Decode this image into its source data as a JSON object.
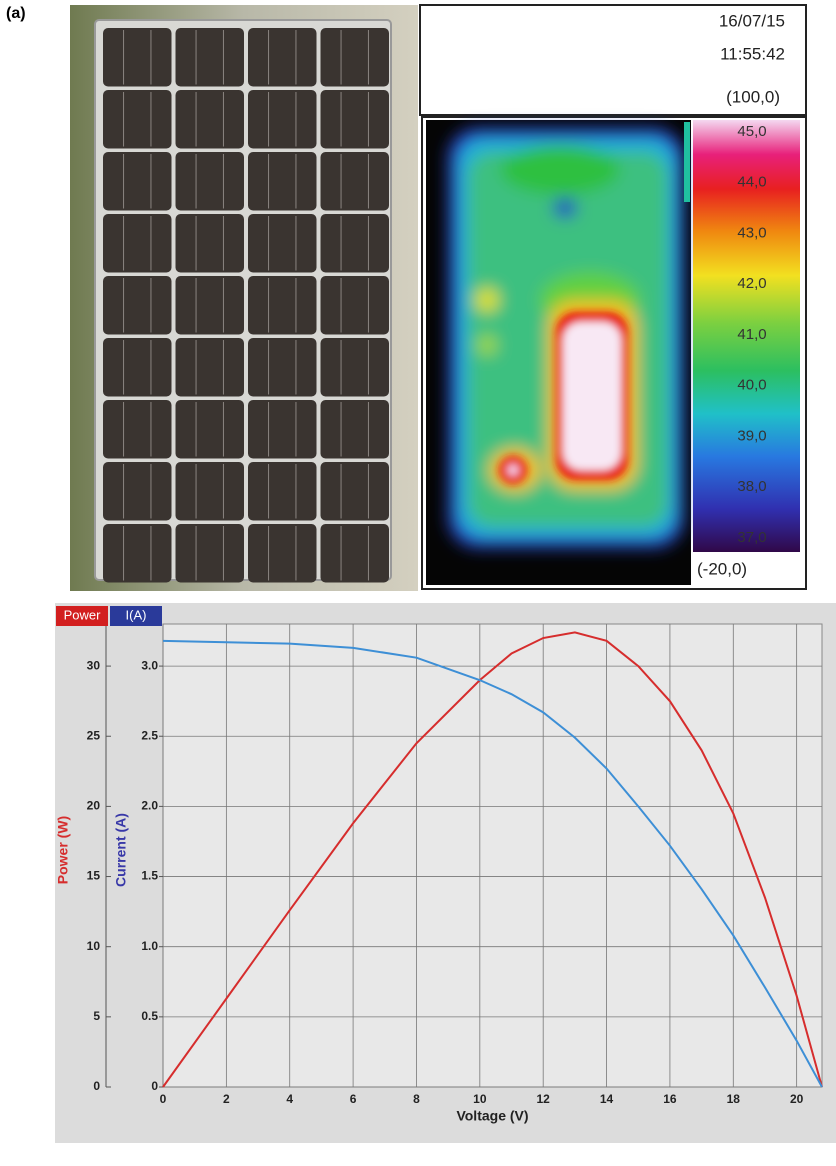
{
  "figure_label": "(a)",
  "thermal": {
    "date": "16/07/15",
    "time": "11:55:42",
    "max_label": "(100,0)",
    "min_label": "(-20,0)",
    "scale_labels": [
      "45,0",
      "44,0",
      "43,0",
      "42,0",
      "41,0",
      "40,0",
      "39,0",
      "38,0",
      "37,0"
    ]
  },
  "chart_data": {
    "type": "line",
    "xlabel": "Voltage (V)",
    "ylabel": "Power (W)",
    "y2label": "Current (A)",
    "x": [
      0,
      2,
      4,
      6,
      8,
      10,
      11,
      12,
      13,
      14,
      15,
      16,
      17,
      18,
      19,
      20,
      20.8
    ],
    "series": [
      {
        "name": "Power",
        "color": "#d62d2d",
        "axis": "y",
        "values": [
          0,
          6.3,
          12.6,
          18.8,
          24.5,
          29.0,
          30.9,
          32.0,
          32.4,
          31.8,
          30.0,
          27.5,
          24.0,
          19.5,
          13.5,
          6.5,
          0
        ]
      },
      {
        "name": "I(A)",
        "color": "#3d8fd6",
        "axis": "y2",
        "values": [
          3.18,
          3.17,
          3.16,
          3.13,
          3.06,
          2.9,
          2.8,
          2.67,
          2.49,
          2.27,
          2.0,
          1.72,
          1.41,
          1.08,
          0.71,
          0.33,
          0
        ]
      }
    ],
    "xlim": [
      0,
      20.8
    ],
    "xticks": [
      0,
      2,
      4,
      6,
      8,
      10,
      12,
      14,
      16,
      18,
      20
    ],
    "ylim": [
      0,
      33
    ],
    "yticks": [
      0,
      5,
      10,
      15,
      20,
      25,
      30
    ],
    "y2lim": [
      0,
      3.3
    ],
    "y2ticks": [
      0,
      0.5,
      {
        "value": 1,
        "label": "1.0"
      },
      1.5,
      {
        "value": 2,
        "label": "2.0"
      },
      2.5,
      {
        "value": 3,
        "label": "3.0"
      }
    ],
    "grid": true
  }
}
